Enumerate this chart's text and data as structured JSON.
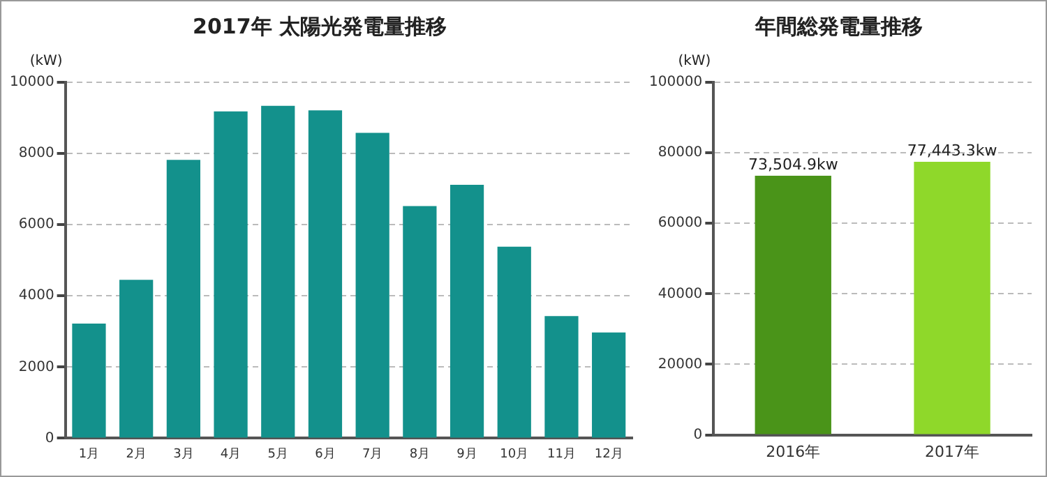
{
  "chart_data": [
    {
      "type": "bar",
      "title": "2017年 太陽光発電量推移",
      "ylabel": "(kW)",
      "categories": [
        "1月",
        "2月",
        "3月",
        "4月",
        "5月",
        "6月",
        "7月",
        "8月",
        "9月",
        "10月",
        "11月",
        "12月"
      ],
      "series": [
        {
          "color": "#13918c",
          "values": [
            3220,
            4450,
            7820,
            9180,
            9340,
            9210,
            8580,
            6520,
            7120,
            5380,
            3430,
            2970
          ]
        }
      ],
      "ylim": [
        0,
        10000
      ],
      "yticks": [
        0,
        2000,
        4000,
        6000,
        8000,
        10000
      ],
      "grid": "y"
    },
    {
      "type": "bar",
      "title": "年間総発電量推移",
      "ylabel": "(kW)",
      "categories": [
        "2016年",
        "2017年"
      ],
      "series": [
        {
          "colors": [
            "#4a9419",
            "#8fd82a"
          ],
          "values": [
            73504.9,
            77443.3
          ],
          "value_labels": [
            "73,504.9kw",
            "77,443.3kw"
          ]
        }
      ],
      "ylim": [
        0,
        100000
      ],
      "yticks": [
        0,
        20000,
        40000,
        60000,
        80000,
        100000
      ],
      "grid": "y"
    }
  ]
}
